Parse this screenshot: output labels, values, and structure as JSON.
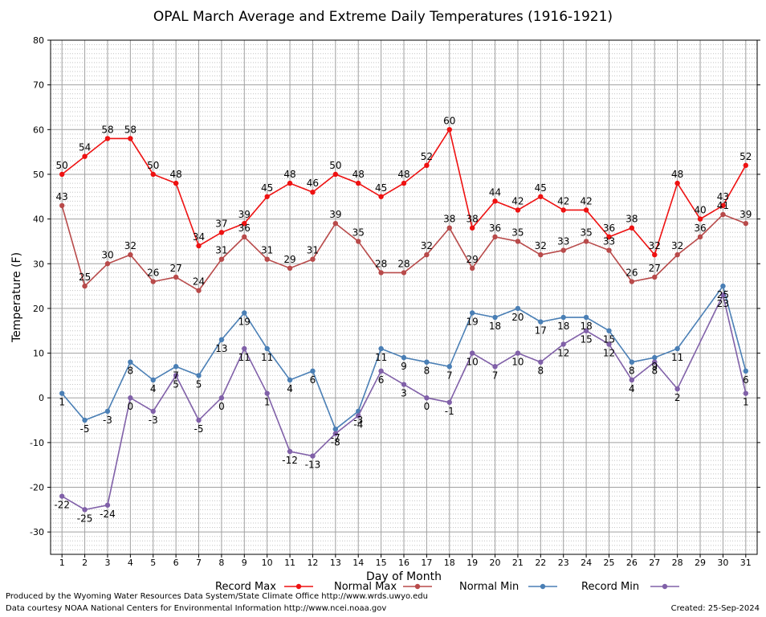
{
  "chart_data": {
    "type": "line",
    "title": "OPAL March Average and Extreme Daily Temperatures (1916-1921)",
    "xlabel": "Day of Month",
    "ylabel": "Temperature (F)",
    "ylim": [
      -35,
      80
    ],
    "yticks": [
      -30,
      -20,
      -10,
      0,
      10,
      20,
      30,
      40,
      50,
      60,
      70,
      80
    ],
    "x": [
      1,
      2,
      3,
      4,
      5,
      6,
      7,
      8,
      9,
      10,
      11,
      12,
      13,
      14,
      15,
      16,
      17,
      18,
      19,
      20,
      21,
      22,
      23,
      24,
      25,
      26,
      27,
      28,
      29,
      30,
      31
    ],
    "xtick_labels": [
      "1",
      "2",
      "3",
      "4",
      "5",
      "6",
      "7",
      "8",
      "9",
      "10",
      "11",
      "12",
      "13",
      "14",
      "15",
      "16",
      "17",
      "18",
      "19",
      "20",
      "21",
      "22",
      "23",
      "24",
      "25",
      "26",
      "27",
      "28",
      "29",
      "30",
      "31"
    ],
    "grid": true,
    "legend_position": "bottom",
    "series": [
      {
        "name": "Record Max",
        "color": "#ee1111",
        "label_pos": "above",
        "values": [
          50,
          54,
          58,
          58,
          50,
          48,
          34,
          37,
          39,
          45,
          48,
          46,
          50,
          48,
          45,
          48,
          52,
          60,
          38,
          44,
          42,
          45,
          42,
          42,
          36,
          38,
          32,
          48,
          40,
          43,
          52
        ]
      },
      {
        "name": "Normal Max",
        "color": "#b84a4a",
        "label_pos": "above",
        "values": [
          43,
          25,
          30,
          32,
          26,
          27,
          24,
          31,
          36,
          31,
          29,
          31,
          39,
          35,
          28,
          28,
          32,
          38,
          29,
          36,
          35,
          32,
          33,
          35,
          33,
          26,
          27,
          32,
          36,
          41,
          39
        ]
      },
      {
        "name": "Normal Min",
        "color": "#4a7fb5",
        "label_pos": "below",
        "values": [
          1,
          -5,
          -3,
          8,
          4,
          7,
          5,
          13,
          19,
          11,
          4,
          6,
          -7,
          -3,
          11,
          9,
          8,
          7,
          19,
          18,
          20,
          17,
          18,
          18,
          15,
          8,
          9,
          11,
          null,
          25,
          6
        ]
      },
      {
        "name": "Record Min",
        "color": "#8060a8",
        "label_pos": "below",
        "values": [
          -22,
          -25,
          -24,
          0,
          -3,
          5,
          -5,
          0,
          11,
          1,
          -12,
          -13,
          -8,
          -4,
          6,
          3,
          0,
          -1,
          10,
          7,
          10,
          8,
          12,
          15,
          12,
          4,
          8,
          2,
          null,
          23,
          1
        ]
      }
    ]
  },
  "footer": {
    "line1": "Produced by the Wyoming Water Resources Data System/State Climate Office http://www.wrds.uwyo.edu",
    "line2": "Data courtesy NOAA National Centers for Environmental Information http://www.ncei.noaa.gov",
    "created": "Created:  25-Sep-2024"
  }
}
